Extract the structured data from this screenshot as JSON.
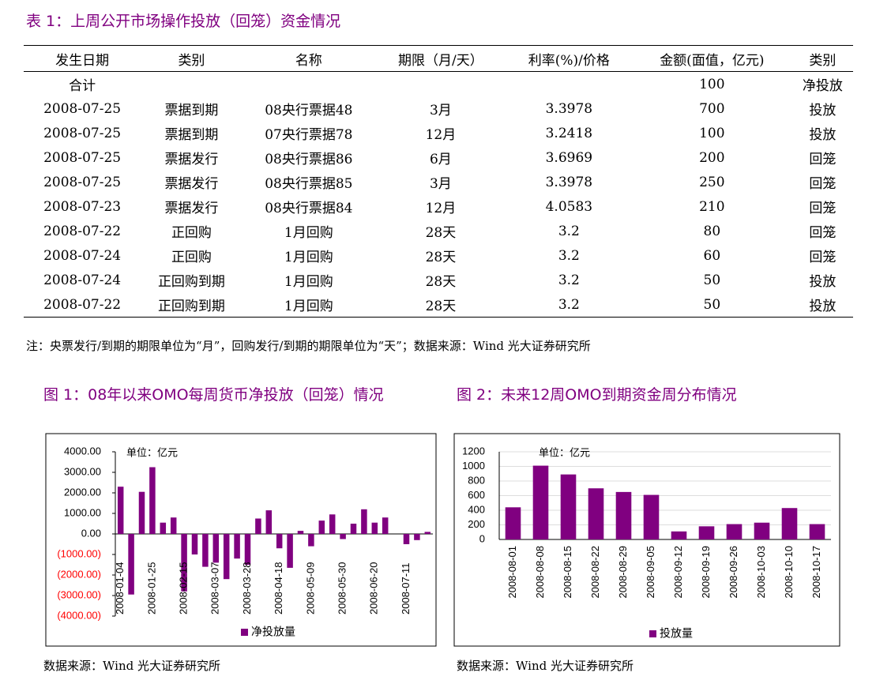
{
  "title": "表 1：上周公开市场操作投放（回笼）资金情况",
  "table": {
    "header": [
      "发生日期",
      "类别",
      "名称",
      "期限（月/天）",
      "利率(%)/价格",
      "金额(面值，亿元)",
      "类别"
    ],
    "rows": [
      [
        "合计",
        null,
        null,
        null,
        null,
        "100",
        "净投放"
      ],
      [
        "2008-07-25",
        "票据到期",
        "08央行票据48",
        "3月",
        "3.3978",
        "700",
        "投放"
      ],
      [
        "2008-07-25",
        "票据到期",
        "07央行票据78",
        "12月",
        "3.2418",
        "100",
        "投放"
      ],
      [
        "2008-07-25",
        "票据发行",
        "08央行票据86",
        "6月",
        "3.6969",
        "200",
        "回笼"
      ],
      [
        "2008-07-25",
        "票据发行",
        "08央行票据85",
        "3月",
        "3.3978",
        "250",
        "回笼"
      ],
      [
        "2008-07-23",
        "票据发行",
        "08央行票据84",
        "12月",
        "4.0583",
        "210",
        "回笼"
      ],
      [
        "2008-07-22",
        "正回购",
        "1月回购",
        "28天",
        "3.2",
        "80",
        "回笼"
      ],
      [
        "2008-07-24",
        "正回购",
        "1月回购",
        "28天",
        "3.2",
        "60",
        "回笼"
      ],
      [
        "2008-07-24",
        "正回购到期",
        "1月回购",
        "28天",
        "3.2",
        "50",
        "投放"
      ],
      [
        "2008-07-22",
        "正回购到期",
        "1月回购",
        "28天",
        "3.2",
        "50",
        "投放"
      ]
    ]
  },
  "note": "注：央票发行/到期的期限单位为“月”，回购发行/到期的期限单位为“天”；数据来源：Wind  光大证券研究所",
  "chart_data": [
    {
      "type": "bar",
      "title": "图 1：08年以来OMO每周货币净投放（回笼）情况",
      "annotation": "单位：亿元",
      "source": "数据来源：Wind  光大证券研究所",
      "categories": [
        "2008-01-04",
        null,
        null,
        "2008-01-25",
        null,
        null,
        "2008-02-15",
        null,
        null,
        "2008-03-07",
        null,
        null,
        "2008-03-28",
        null,
        null,
        "2008-04-18",
        null,
        null,
        "2008-05-09",
        null,
        null,
        "2008-05-30",
        null,
        null,
        "2008-06-20",
        null,
        null,
        "2008-07-11",
        null,
        null
      ],
      "series": [
        {
          "name": "净投放量",
          "color": "#800080",
          "values": [
            2300,
            -2950,
            2050,
            3250,
            550,
            800,
            -2800,
            -1000,
            -1600,
            -1400,
            -2200,
            -1200,
            -1500,
            750,
            1150,
            -700,
            -1650,
            150,
            -600,
            650,
            950,
            -250,
            500,
            1200,
            550,
            800,
            0,
            -500,
            -300,
            100
          ]
        }
      ],
      "ylim": [
        -4000,
        4000
      ],
      "yticks": [
        {
          "value": -4000,
          "label": "(4000.00)"
        },
        {
          "value": -3000,
          "label": "(3000.00)"
        },
        {
          "value": -2000,
          "label": "(2000.00)"
        },
        {
          "value": -1000,
          "label": "(1000.00)"
        },
        {
          "value": 0,
          "label": "0.00"
        },
        {
          "value": 1000,
          "label": "1000.00"
        },
        {
          "value": 2000,
          "label": "2000.00"
        },
        {
          "value": 3000,
          "label": "3000.00"
        },
        {
          "value": 4000,
          "label": "4000.00"
        }
      ],
      "negative_tick_color": "#ff0000",
      "grid": false
    },
    {
      "type": "bar",
      "title": "图 2：未来12周OMO到期资金周分布情况",
      "annotation": "单位：亿元",
      "source": "数据来源：Wind  光大证券研究所",
      "categories": [
        "2008-08-01",
        "2008-08-08",
        "2008-08-15",
        "2008-08-22",
        "2008-08-29",
        "2008-09-05",
        "2008-09-12",
        "2008-09-19",
        "2008-09-26",
        "2008-10-03",
        "2008-10-10",
        "2008-10-17"
      ],
      "series": [
        {
          "name": "投放量",
          "color": "#800080",
          "values": [
            440,
            1010,
            890,
            700,
            650,
            610,
            110,
            180,
            210,
            230,
            430,
            210
          ]
        }
      ],
      "ylim": [
        0,
        1200
      ],
      "yticks": [
        0,
        200,
        400,
        600,
        800,
        1000,
        1200
      ],
      "grid": true
    }
  ]
}
